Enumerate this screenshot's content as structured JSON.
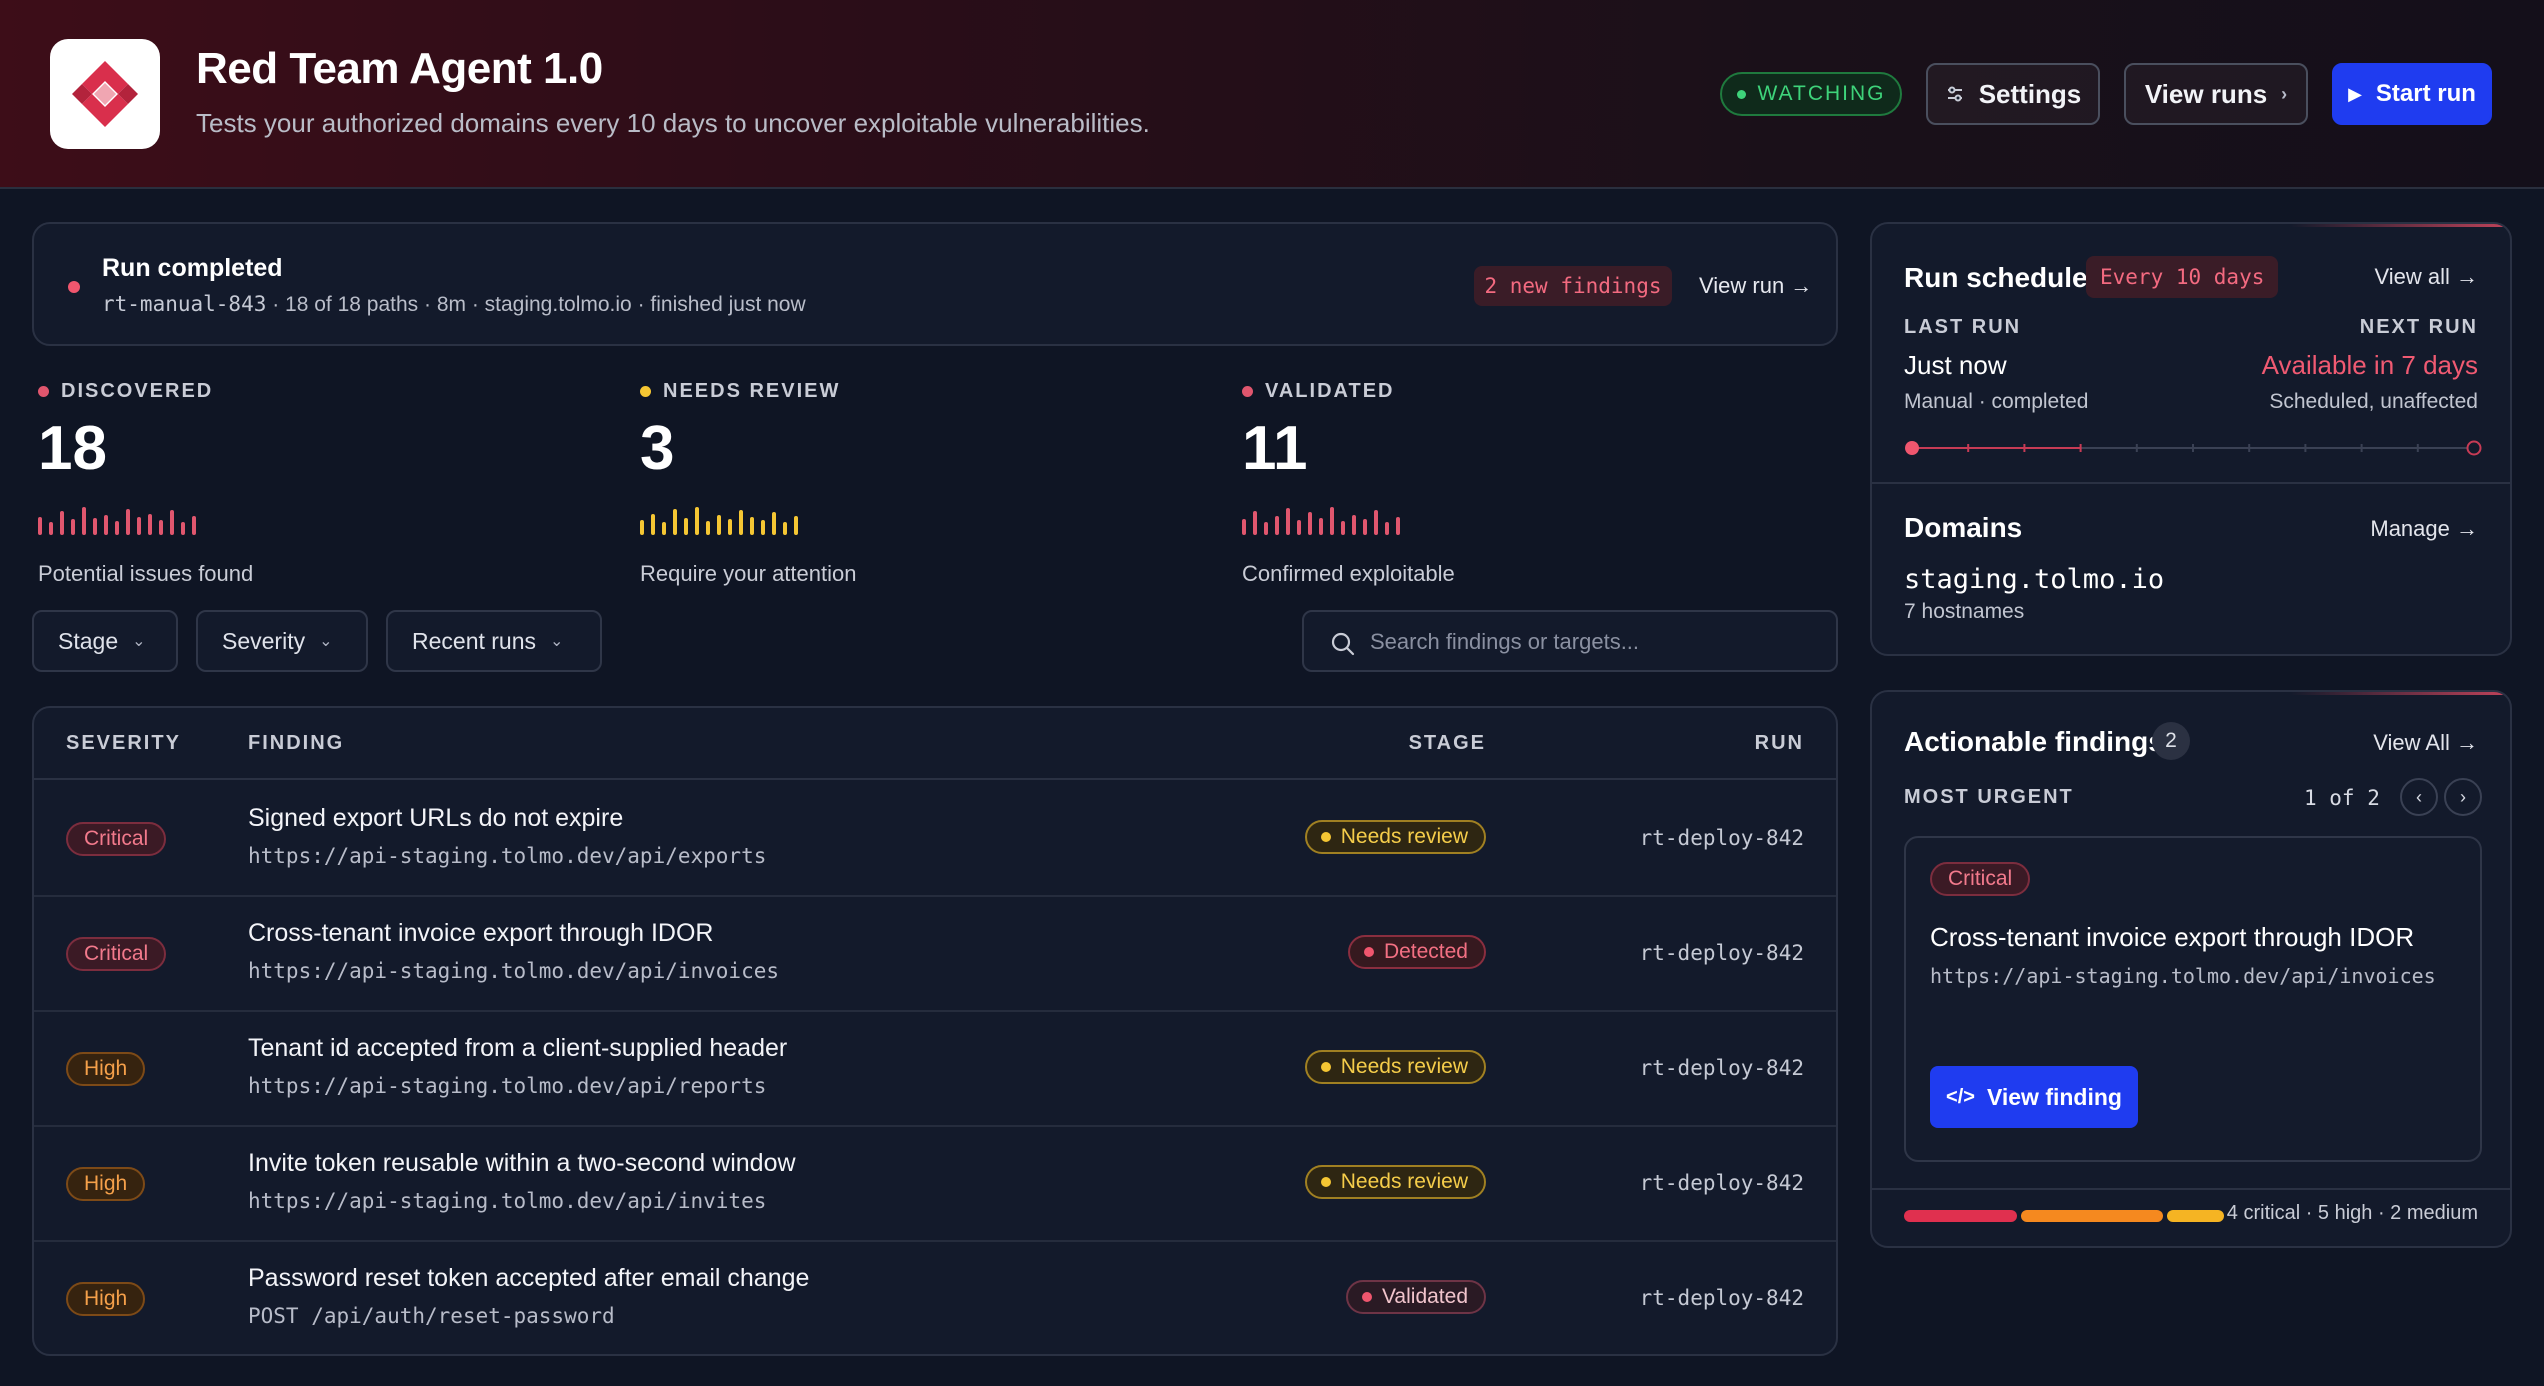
{
  "header": {
    "title": "Red Team Agent 1.0",
    "subtitle": "Tests your authorized domains every 10 days to uncover exploitable vulnerabilities.",
    "status": "WATCHING",
    "settings_label": "Settings",
    "view_runs_label": "View runs",
    "start_run_label": "Start run"
  },
  "banner": {
    "title": "Run completed",
    "run_id": "rt-manual-843",
    "details": "· 18 of 18 paths · 8m · staging.tolmo.io · finished just now",
    "new_findings": "2 new findings",
    "view_run": "View run →"
  },
  "stats": [
    {
      "label": "DISCOVERED",
      "value": "18",
      "desc": "Potential issues found",
      "color": "#e0566e",
      "spark": [
        0.55,
        0.3,
        0.8,
        0.45,
        1.0,
        0.5,
        0.65,
        0.35,
        0.9,
        0.55,
        0.7,
        0.4,
        0.85,
        0.3,
        0.6
      ]
    },
    {
      "label": "NEEDS REVIEW",
      "value": "3",
      "desc": "Require your attention",
      "color": "#f5c633",
      "spark": [
        0.4,
        0.7,
        0.3,
        0.9,
        0.5,
        1.0,
        0.35,
        0.65,
        0.45,
        0.85,
        0.55,
        0.4,
        0.75,
        0.3,
        0.6
      ]
    },
    {
      "label": "VALIDATED",
      "value": "11",
      "desc": "Confirmed exploitable",
      "color": "#e0566e",
      "spark": [
        0.45,
        0.8,
        0.3,
        0.6,
        0.95,
        0.4,
        0.75,
        0.5,
        1.0,
        0.35,
        0.65,
        0.45,
        0.85,
        0.3,
        0.55
      ]
    }
  ],
  "filters": {
    "stage": "Stage",
    "severity": "Severity",
    "recent_runs": "Recent runs",
    "search_placeholder": "Search findings or targets..."
  },
  "table": {
    "headers": {
      "severity": "SEVERITY",
      "finding": "FINDING",
      "stage": "STAGE",
      "run": "RUN"
    },
    "rows": [
      {
        "severity": "Critical",
        "title": "Signed export URLs do not expire",
        "url": "https://api-staging.tolmo.dev/api/exports",
        "stage": "Needs review",
        "run": "rt-deploy-842"
      },
      {
        "severity": "Critical",
        "title": "Cross-tenant invoice export through IDOR",
        "url": "https://api-staging.tolmo.dev/api/invoices",
        "stage": "Detected",
        "run": "rt-deploy-842"
      },
      {
        "severity": "High",
        "title": "Tenant id accepted from a client-supplied header",
        "url": "https://api-staging.tolmo.dev/api/reports",
        "stage": "Needs review",
        "run": "rt-deploy-842"
      },
      {
        "severity": "High",
        "title": "Invite token reusable within a two-second window",
        "url": "https://api-staging.tolmo.dev/api/invites",
        "stage": "Needs review",
        "run": "rt-deploy-842"
      },
      {
        "severity": "High",
        "title": "Password reset token accepted after email change",
        "url": "POST /api/auth/reset-password",
        "stage": "Validated",
        "run": "rt-deploy-842"
      }
    ]
  },
  "schedule": {
    "title": "Run schedule",
    "badge": "Every 10 days",
    "view_all": "View all →",
    "last_run_label": "LAST RUN",
    "last_run_value": "Just now",
    "last_run_sub": "Manual · completed",
    "next_run_label": "NEXT RUN",
    "next_run_value": "Available in 7 days",
    "next_run_sub": "Scheduled, unaffected",
    "progress": 0.3
  },
  "domains": {
    "title": "Domains",
    "manage": "Manage →",
    "name": "staging.tolmo.io",
    "sub": "7 hostnames"
  },
  "actionable": {
    "title": "Actionable findings",
    "count": "2",
    "view_all": "View All →",
    "most_urgent": "MOST URGENT",
    "pager": "1 of 2",
    "card": {
      "severity": "Critical",
      "title": "Cross-tenant invoice export through IDOR",
      "url": "https://api-staging.tolmo.dev/api/invoices",
      "button": "View finding"
    },
    "summary": "4 critical · 5 high · 2 medium",
    "breakdown": {
      "critical": 4,
      "high": 5,
      "medium": 2
    }
  },
  "colors": {
    "accent": "#1f3cf0",
    "critical": "#e0304f",
    "high": "#f5891f",
    "medium": "#f5b423"
  }
}
